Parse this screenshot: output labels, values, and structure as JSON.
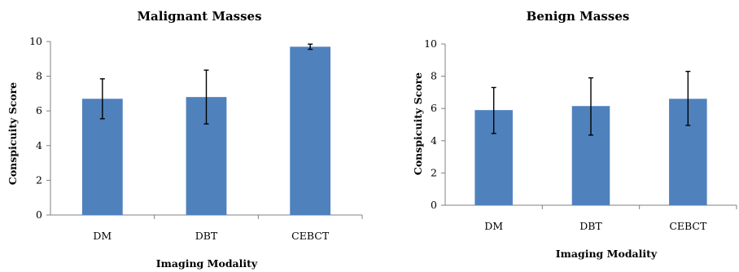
{
  "chart_data": [
    {
      "type": "bar",
      "title": "Malignant Masses",
      "xlabel": "Imaging Modality",
      "ylabel": "Conspicuity Score",
      "categories": [
        "DM",
        "DBT",
        "CEBCT"
      ],
      "values": [
        6.7,
        6.8,
        9.7
      ],
      "error_upper": [
        7.85,
        8.35,
        9.85
      ],
      "error_lower": [
        5.55,
        5.25,
        9.55
      ],
      "ylim": [
        0,
        10
      ],
      "yticks": [
        0,
        2,
        4,
        6,
        8,
        10
      ],
      "grid": false,
      "bar_color": "#4f81bd"
    },
    {
      "type": "bar",
      "title": "Benign Masses",
      "xlabel": "Imaging Modality",
      "ylabel": "Conspicuity Score",
      "categories": [
        "DM",
        "DBT",
        "CEBCT"
      ],
      "values": [
        5.9,
        6.15,
        6.6
      ],
      "error_upper": [
        7.3,
        7.9,
        8.3
      ],
      "error_lower": [
        4.45,
        4.35,
        4.95
      ],
      "ylim": [
        0,
        10
      ],
      "yticks": [
        0,
        2,
        4,
        6,
        8,
        10
      ],
      "grid": false,
      "bar_color": "#4f81bd"
    }
  ]
}
